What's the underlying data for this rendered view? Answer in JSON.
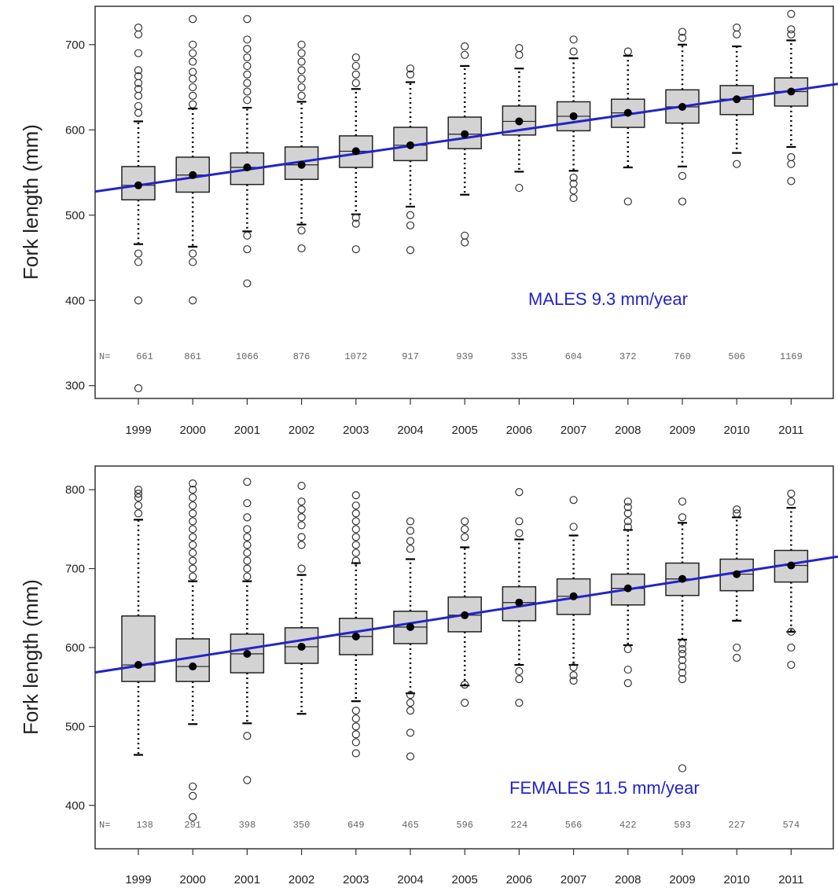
{
  "colors": {
    "trend": "#2323c8",
    "box_fill": "#d3d3d3",
    "mean_dot": "#000000",
    "outlier": "#333333"
  },
  "chart_data": [
    {
      "type": "box",
      "panel": "males",
      "ylabel": "Fork length (mm)",
      "annotation": "MALES   9.3 mm/year",
      "ylim": [
        285,
        745
      ],
      "yticks": [
        300,
        400,
        500,
        600,
        700
      ],
      "categories": [
        "1999",
        "2000",
        "2001",
        "2002",
        "2003",
        "2004",
        "2005",
        "2006",
        "2007",
        "2008",
        "2009",
        "2010",
        "2011"
      ],
      "n_prefix": "N=",
      "n": [
        "661",
        "861",
        "1066",
        "876",
        "1072",
        "917",
        "939",
        "335",
        "604",
        "372",
        "760",
        "506",
        "1169"
      ],
      "trend": {
        "x": [
          "1999",
          "2011"
        ],
        "y": [
          535,
          646
        ],
        "slope_label": "9.3 mm/year"
      },
      "boxes": [
        {
          "q1": 518,
          "median": 535,
          "q3": 557,
          "wlo": 466,
          "whi": 610,
          "mean": 535,
          "outliers": [
            720,
            712,
            690,
            670,
            663,
            655,
            648,
            640,
            628,
            620,
            455,
            445,
            400,
            297
          ]
        },
        {
          "q1": 527,
          "median": 547,
          "q3": 568,
          "wlo": 463,
          "whi": 625,
          "mean": 547,
          "outliers": [
            730,
            700,
            690,
            680,
            668,
            660,
            650,
            640,
            630,
            455,
            445,
            400
          ]
        },
        {
          "q1": 536,
          "median": 556,
          "q3": 573,
          "wlo": 481,
          "whi": 626,
          "mean": 556,
          "outliers": [
            730,
            706,
            695,
            685,
            675,
            665,
            655,
            645,
            635,
            476,
            460,
            420
          ]
        },
        {
          "q1": 542,
          "median": 559,
          "q3": 580,
          "wlo": 489,
          "whi": 633,
          "mean": 559,
          "outliers": [
            700,
            690,
            680,
            670,
            660,
            650,
            640,
            482,
            461
          ]
        },
        {
          "q1": 556,
          "median": 575,
          "q3": 593,
          "wlo": 501,
          "whi": 648,
          "mean": 575,
          "outliers": [
            685,
            675,
            665,
            655,
            497,
            490,
            460
          ]
        },
        {
          "q1": 564,
          "median": 582,
          "q3": 603,
          "wlo": 510,
          "whi": 656,
          "mean": 582,
          "outliers": [
            672,
            665,
            500,
            488,
            459
          ]
        },
        {
          "q1": 578,
          "median": 595,
          "q3": 615,
          "wlo": 524,
          "whi": 675,
          "mean": 595,
          "outliers": [
            698,
            688,
            476,
            468
          ]
        },
        {
          "q1": 594,
          "median": 610,
          "q3": 628,
          "wlo": 551,
          "whi": 672,
          "mean": 610,
          "outliers": [
            696,
            688,
            532
          ]
        },
        {
          "q1": 599,
          "median": 616,
          "q3": 633,
          "wlo": 552,
          "whi": 684,
          "mean": 616,
          "outliers": [
            706,
            692,
            544,
            537,
            529,
            520
          ]
        },
        {
          "q1": 603,
          "median": 620,
          "q3": 636,
          "wlo": 556,
          "whi": 687,
          "mean": 620,
          "outliers": [
            692,
            516
          ]
        },
        {
          "q1": 608,
          "median": 627,
          "q3": 647,
          "wlo": 557,
          "whi": 700,
          "mean": 627,
          "outliers": [
            715,
            708,
            546,
            516
          ]
        },
        {
          "q1": 618,
          "median": 636,
          "q3": 652,
          "wlo": 573,
          "whi": 698,
          "mean": 636,
          "outliers": [
            720,
            712,
            560
          ]
        },
        {
          "q1": 628,
          "median": 645,
          "q3": 661,
          "wlo": 580,
          "whi": 705,
          "mean": 645,
          "outliers": [
            736,
            718,
            712,
            568,
            560,
            540
          ]
        }
      ]
    },
    {
      "type": "box",
      "panel": "females",
      "ylabel": "Fork length (mm)",
      "annotation": "FEMALES   11.5 mm/year",
      "ylim": [
        345,
        830
      ],
      "yticks": [
        400,
        500,
        600,
        700,
        800
      ],
      "categories": [
        "1999",
        "2000",
        "2001",
        "2002",
        "2003",
        "2004",
        "2005",
        "2006",
        "2007",
        "2008",
        "2009",
        "2010",
        "2011"
      ],
      "n_prefix": "N=",
      "n": [
        "138",
        "291",
        "398",
        "350",
        "649",
        "465",
        "596",
        "224",
        "566",
        "422",
        "593",
        "227",
        "574"
      ],
      "trend": {
        "x": [
          "1999",
          "2011"
        ],
        "y": [
          577,
          706
        ],
        "slope_label": "11.5 mm/year"
      },
      "boxes": [
        {
          "q1": 557,
          "median": 578,
          "q3": 640,
          "wlo": 464,
          "whi": 762,
          "mean": 578,
          "outliers": [
            800,
            795,
            790,
            780,
            770
          ]
        },
        {
          "q1": 557,
          "median": 576,
          "q3": 611,
          "wlo": 503,
          "whi": 684,
          "mean": 576,
          "outliers": [
            808,
            800,
            790,
            780,
            770,
            760,
            750,
            740,
            730,
            720,
            710,
            700,
            690,
            424,
            412,
            385
          ]
        },
        {
          "q1": 568,
          "median": 592,
          "q3": 617,
          "wlo": 504,
          "whi": 684,
          "mean": 592,
          "outliers": [
            810,
            783,
            765,
            750,
            740,
            730,
            720,
            710,
            700,
            690,
            488,
            432
          ]
        },
        {
          "q1": 580,
          "median": 601,
          "q3": 625,
          "wlo": 516,
          "whi": 692,
          "mean": 601,
          "outliers": [
            805,
            785,
            775,
            765,
            755,
            740,
            730,
            700
          ]
        },
        {
          "q1": 591,
          "median": 614,
          "q3": 637,
          "wlo": 532,
          "whi": 707,
          "mean": 614,
          "outliers": [
            793,
            780,
            770,
            760,
            750,
            740,
            730,
            720,
            710,
            520,
            510,
            500,
            490,
            480,
            466
          ]
        },
        {
          "q1": 605,
          "median": 626,
          "q3": 646,
          "wlo": 542,
          "whi": 712,
          "mean": 626,
          "outliers": [
            760,
            748,
            735,
            725,
            540,
            530,
            520,
            492,
            462
          ]
        },
        {
          "q1": 620,
          "median": 641,
          "q3": 664,
          "wlo": 552,
          "whi": 727,
          "mean": 641,
          "outliers": [
            760,
            750,
            740,
            553,
            530
          ]
        },
        {
          "q1": 634,
          "median": 657,
          "q3": 677,
          "wlo": 578,
          "whi": 737,
          "mean": 657,
          "outliers": [
            797,
            760,
            745,
            570,
            560,
            530
          ]
        },
        {
          "q1": 642,
          "median": 665,
          "q3": 687,
          "wlo": 578,
          "whi": 742,
          "mean": 665,
          "outliers": [
            787,
            753,
            575,
            565,
            558
          ]
        },
        {
          "q1": 654,
          "median": 675,
          "q3": 693,
          "wlo": 603,
          "whi": 749,
          "mean": 675,
          "outliers": [
            785,
            778,
            770,
            760,
            753,
            598,
            572,
            555
          ]
        },
        {
          "q1": 666,
          "median": 687,
          "q3": 707,
          "wlo": 610,
          "whi": 758,
          "mean": 687,
          "outliers": [
            785,
            765,
            605,
            598,
            592,
            584,
            576,
            568,
            560,
            447
          ]
        },
        {
          "q1": 672,
          "median": 693,
          "q3": 712,
          "wlo": 634,
          "whi": 765,
          "mean": 693,
          "outliers": [
            775,
            770,
            600,
            587
          ]
        },
        {
          "q1": 683,
          "median": 704,
          "q3": 723,
          "wlo": 620,
          "whi": 777,
          "mean": 704,
          "outliers": [
            795,
            785,
            620,
            600,
            578
          ]
        }
      ]
    }
  ]
}
